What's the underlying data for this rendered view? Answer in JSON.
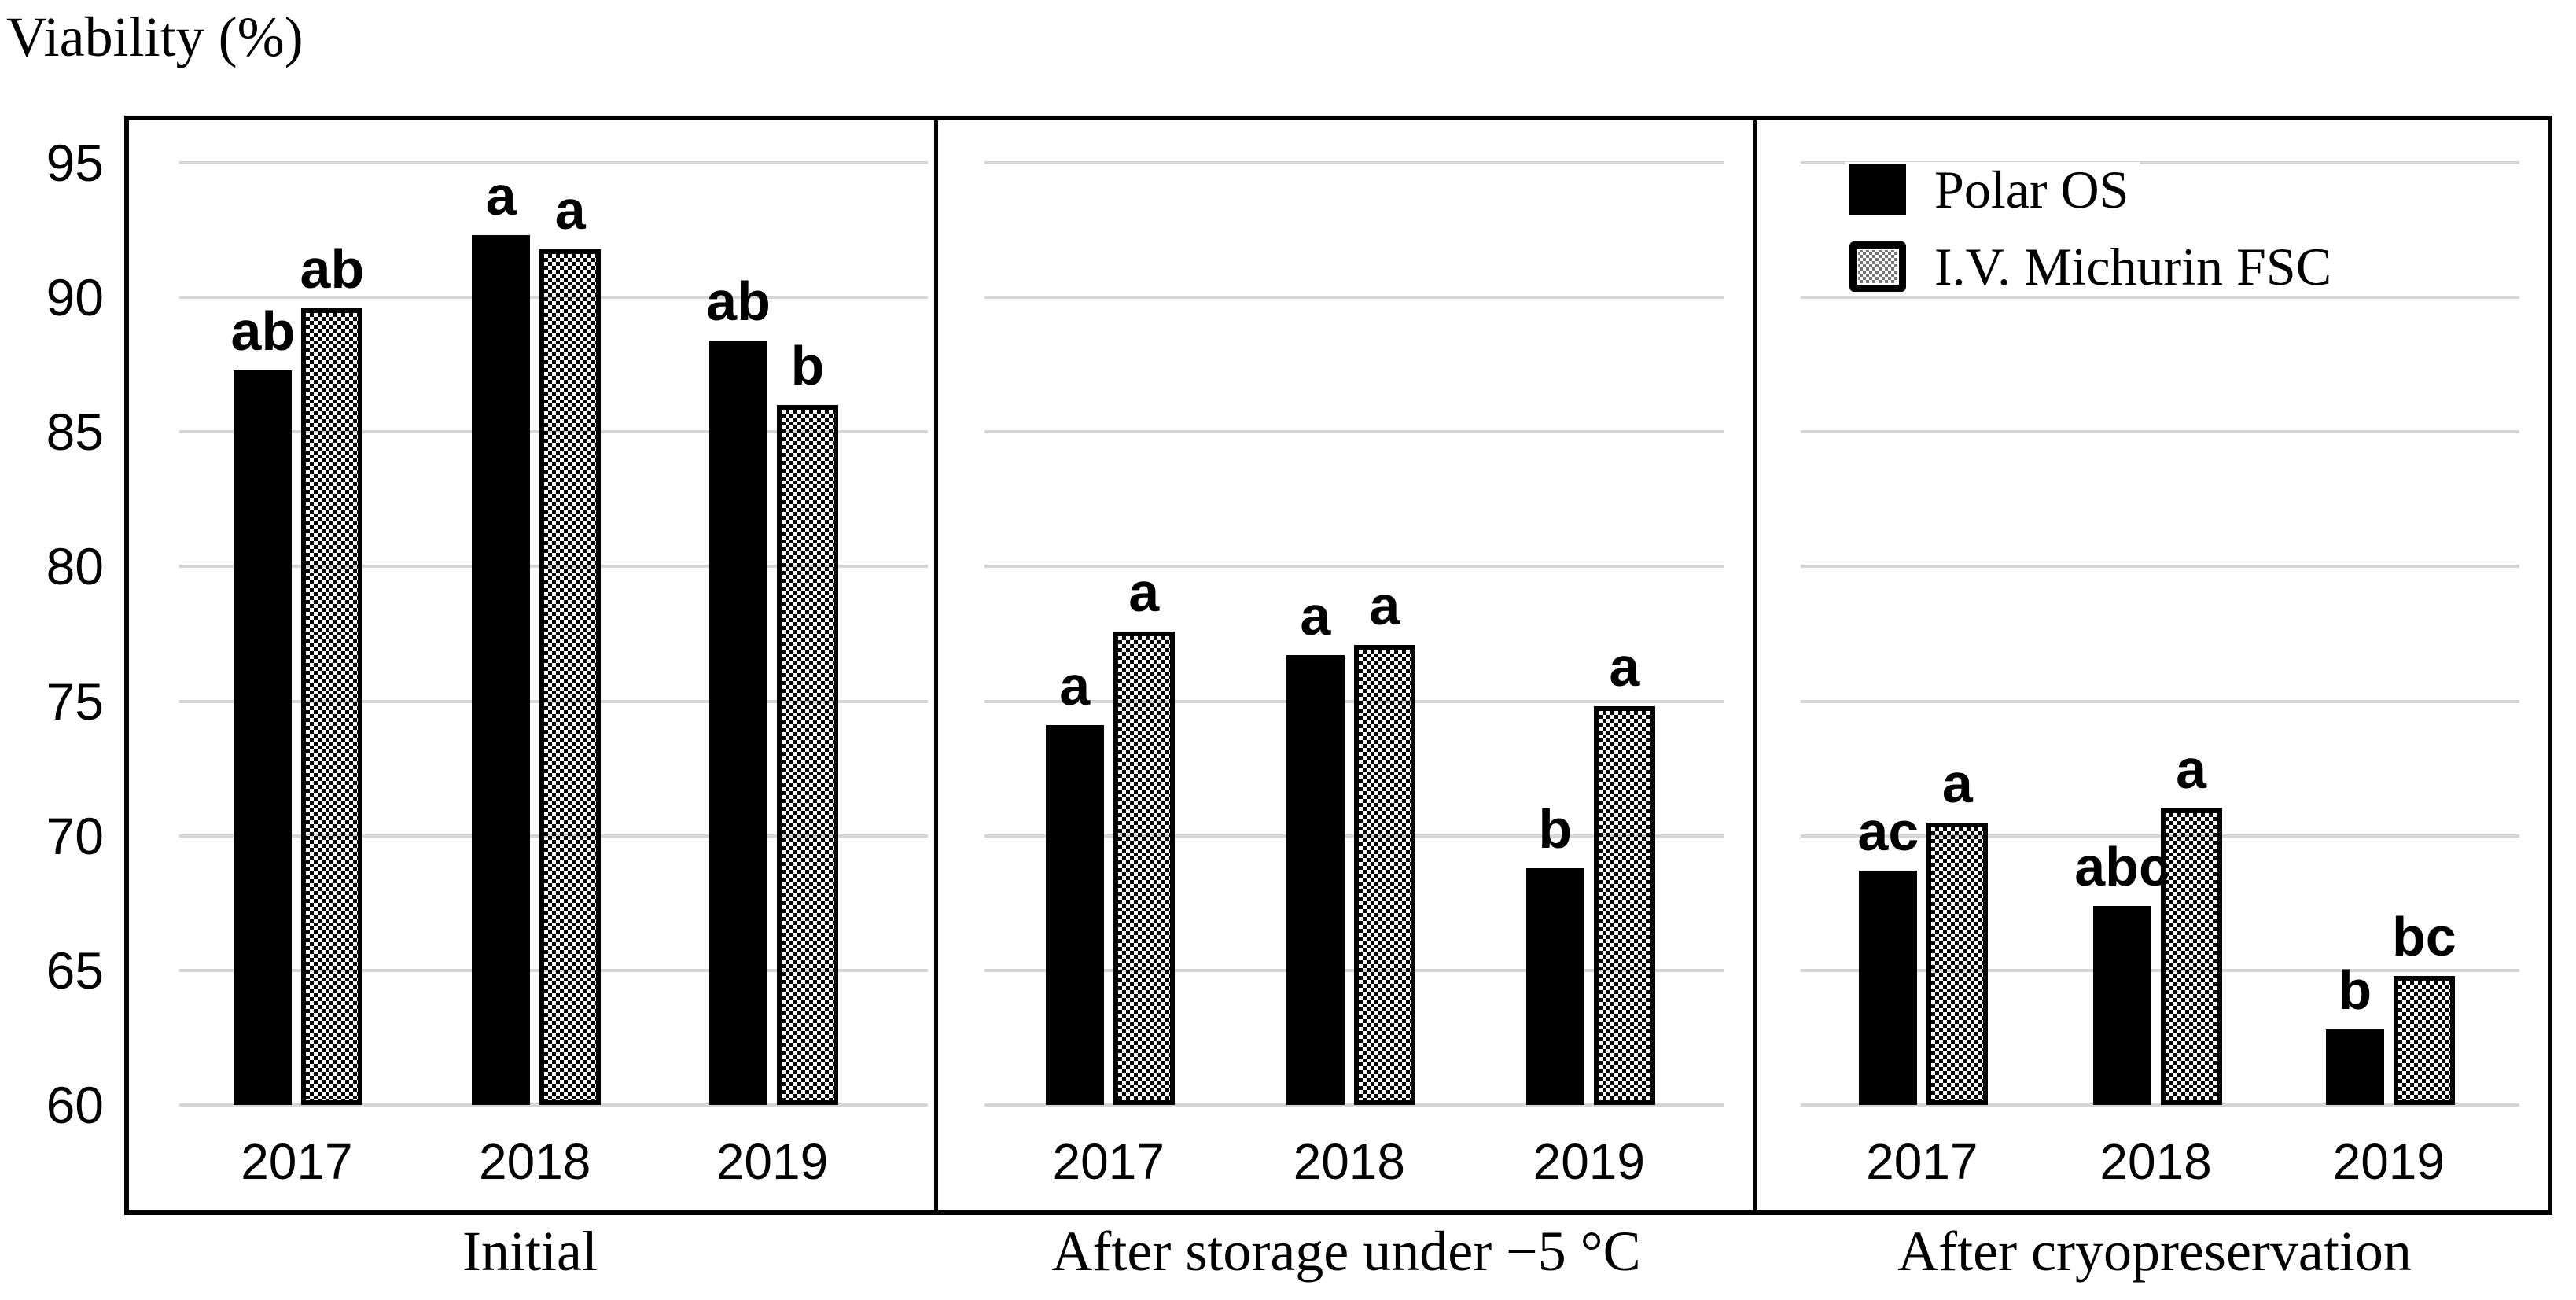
{
  "chart_data": {
    "type": "bar",
    "title": "Viability (%)",
    "ylabel": "Viability (%)",
    "ylim": [
      60,
      95
    ],
    "yticks": [
      95,
      90,
      85,
      80,
      75,
      70,
      65,
      60
    ],
    "grid": true,
    "legend_position": "top-right",
    "series": [
      {
        "name": "Polar OS",
        "fill": "solid-black"
      },
      {
        "name": "I.V. Michurin FSC",
        "fill": "black-dot-pattern"
      }
    ],
    "panels": [
      {
        "label": "Initial",
        "categories": [
          "2017",
          "2018",
          "2019"
        ],
        "values": [
          [
            87.3,
            92.3,
            88.4
          ],
          [
            89.6,
            91.8,
            86.0
          ]
        ],
        "sig_letters": [
          [
            "ab",
            "a",
            "ab"
          ],
          [
            "ab",
            "a",
            "b"
          ]
        ]
      },
      {
        "label": "After storage under −5 °C",
        "categories": [
          "2017",
          "2018",
          "2019"
        ],
        "values": [
          [
            74.1,
            76.7,
            68.8
          ],
          [
            77.6,
            77.1,
            74.8
          ]
        ],
        "sig_letters": [
          [
            "a",
            "a",
            "b"
          ],
          [
            "a",
            "a",
            "a"
          ]
        ]
      },
      {
        "label": "After cryopreservation",
        "categories": [
          "2017",
          "2018",
          "2019"
        ],
        "values": [
          [
            68.7,
            67.4,
            62.8
          ],
          [
            70.5,
            71.0,
            64.8
          ]
        ],
        "sig_letters": [
          [
            "ac",
            "abc",
            "b"
          ],
          [
            "a",
            "a",
            "bc"
          ]
        ]
      }
    ],
    "colors": {
      "bar": "#000000",
      "gridline": "#d6d6d6",
      "background": "#ffffff"
    }
  }
}
